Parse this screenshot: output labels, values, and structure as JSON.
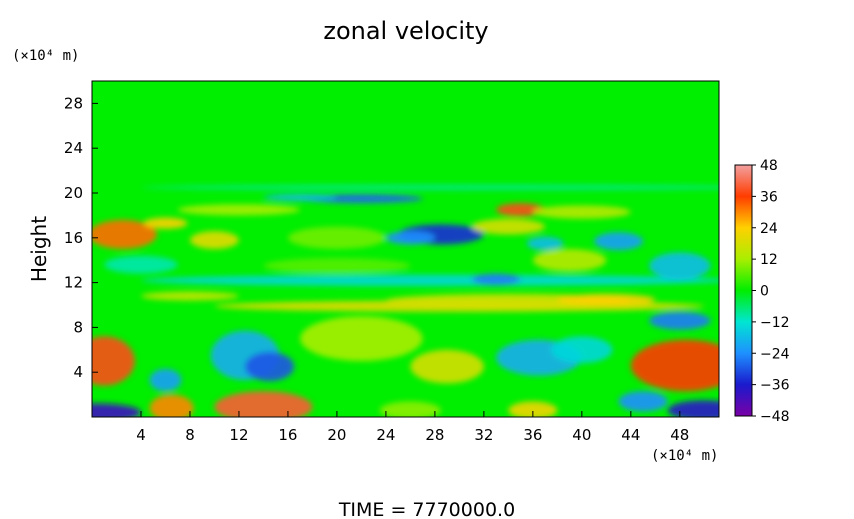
{
  "chart_data": {
    "type": "heatmap",
    "title": "zonal velocity",
    "ylabel": "Height",
    "x_unit": "(×10⁴ m)",
    "y_unit": "(×10⁴ m)",
    "footer": "TIME  =  7770000.0",
    "x_ticks": [
      4,
      8,
      12,
      16,
      20,
      24,
      28,
      32,
      36,
      40,
      44,
      48
    ],
    "y_ticks": [
      4,
      8,
      12,
      16,
      20,
      24,
      28
    ],
    "xlim": [
      0,
      51.2
    ],
    "ylim": [
      0,
      30
    ],
    "colorbar": {
      "ticks": [
        48,
        36,
        24,
        12,
        0,
        -12,
        -24,
        -36,
        -48
      ],
      "range": [
        -48,
        48
      ],
      "stops": [
        {
          "v": -48,
          "color": "#7a00a6"
        },
        {
          "v": -36,
          "color": "#1a1acd"
        },
        {
          "v": -24,
          "color": "#1e90ff"
        },
        {
          "v": -12,
          "color": "#00e6d2"
        },
        {
          "v": 0,
          "color": "#00ee00"
        },
        {
          "v": 12,
          "color": "#aaee00"
        },
        {
          "v": 24,
          "color": "#ffd000"
        },
        {
          "v": 36,
          "color": "#ff3c00"
        },
        {
          "v": 48,
          "color": "#f2a0a0"
        }
      ]
    },
    "field_blobs": [
      {
        "x": 1,
        "y": 5,
        "rx": 2.5,
        "ry": 2.2,
        "v": 38
      },
      {
        "x": 0.5,
        "y": 0.4,
        "rx": 3.5,
        "ry": 0.8,
        "v": -40
      },
      {
        "x": 6.5,
        "y": 0.8,
        "rx": 1.8,
        "ry": 1.2,
        "v": 30
      },
      {
        "x": 14,
        "y": 0.9,
        "rx": 4,
        "ry": 1.4,
        "v": 40
      },
      {
        "x": 12.5,
        "y": 5.5,
        "rx": 2.8,
        "ry": 2.2,
        "v": -20
      },
      {
        "x": 14.5,
        "y": 4.5,
        "rx": 2,
        "ry": 1.3,
        "v": -30
      },
      {
        "x": 6,
        "y": 3.3,
        "rx": 1.3,
        "ry": 1,
        "v": -22
      },
      {
        "x": 22,
        "y": 7,
        "rx": 5,
        "ry": 2,
        "v": 12
      },
      {
        "x": 29,
        "y": 4.5,
        "rx": 3,
        "ry": 1.5,
        "v": 18
      },
      {
        "x": 36.5,
        "y": 5.3,
        "rx": 3.5,
        "ry": 1.6,
        "v": -20
      },
      {
        "x": 40,
        "y": 6,
        "rx": 2.5,
        "ry": 1.2,
        "v": -14
      },
      {
        "x": 48.5,
        "y": 4.6,
        "rx": 4.5,
        "ry": 2.3,
        "v": 36
      },
      {
        "x": 48,
        "y": 8.6,
        "rx": 2.5,
        "ry": 0.8,
        "v": -26
      },
      {
        "x": 50,
        "y": 0.6,
        "rx": 3,
        "ry": 0.9,
        "v": -38
      },
      {
        "x": 45,
        "y": 1.4,
        "rx": 2,
        "ry": 0.9,
        "v": -24
      },
      {
        "x": 36,
        "y": 0.6,
        "rx": 2,
        "ry": 0.8,
        "v": 22
      },
      {
        "x": 26,
        "y": 0.6,
        "rx": 2.5,
        "ry": 0.8,
        "v": 10
      },
      {
        "x": 30,
        "y": 9.9,
        "rx": 20,
        "ry": 0.5,
        "v": 20
      },
      {
        "x": 34,
        "y": 10.4,
        "rx": 10,
        "ry": 0.6,
        "v": 18
      },
      {
        "x": 28,
        "y": 12.2,
        "rx": 24,
        "ry": 0.5,
        "v": -14
      },
      {
        "x": 2.5,
        "y": 16.3,
        "rx": 2.8,
        "ry": 1.3,
        "v": 32
      },
      {
        "x": 6,
        "y": 17.3,
        "rx": 1.8,
        "ry": 0.5,
        "v": 24
      },
      {
        "x": 10,
        "y": 15.8,
        "rx": 2,
        "ry": 0.8,
        "v": 20
      },
      {
        "x": 28.5,
        "y": 16.3,
        "rx": 3.5,
        "ry": 0.9,
        "v": -34
      },
      {
        "x": 26,
        "y": 16,
        "rx": 2,
        "ry": 0.6,
        "v": -24
      },
      {
        "x": 35,
        "y": 18.5,
        "rx": 2,
        "ry": 0.6,
        "v": 38
      },
      {
        "x": 34,
        "y": 17,
        "rx": 3,
        "ry": 0.7,
        "v": 18
      },
      {
        "x": 22,
        "y": 19.5,
        "rx": 5,
        "ry": 0.4,
        "v": -28
      },
      {
        "x": 17,
        "y": 19.6,
        "rx": 3,
        "ry": 0.3,
        "v": -18
      },
      {
        "x": 43,
        "y": 15.7,
        "rx": 2,
        "ry": 0.8,
        "v": -22
      },
      {
        "x": 37,
        "y": 15.5,
        "rx": 1.5,
        "ry": 0.6,
        "v": -18
      },
      {
        "x": 39,
        "y": 14,
        "rx": 3,
        "ry": 1,
        "v": 14
      },
      {
        "x": 48,
        "y": 13.5,
        "rx": 2.5,
        "ry": 1.2,
        "v": -18
      },
      {
        "x": 33,
        "y": 12.3,
        "rx": 2,
        "ry": 0.5,
        "v": -26
      },
      {
        "x": 40,
        "y": 18.3,
        "rx": 4,
        "ry": 0.6,
        "v": 14
      },
      {
        "x": 12,
        "y": 18.5,
        "rx": 5,
        "ry": 0.5,
        "v": 12
      },
      {
        "x": 20,
        "y": 16,
        "rx": 4,
        "ry": 1,
        "v": 8
      },
      {
        "x": 42,
        "y": 10.5,
        "rx": 4,
        "ry": 0.5,
        "v": 24
      },
      {
        "x": 8,
        "y": 10.8,
        "rx": 4,
        "ry": 0.4,
        "v": 16
      },
      {
        "x": 30,
        "y": 20.5,
        "rx": 26,
        "ry": 0.25,
        "v": -8
      },
      {
        "x": 20,
        "y": 13.5,
        "rx": 6,
        "ry": 0.7,
        "v": 6
      },
      {
        "x": 4,
        "y": 13.6,
        "rx": 3,
        "ry": 0.8,
        "v": -10
      }
    ]
  }
}
